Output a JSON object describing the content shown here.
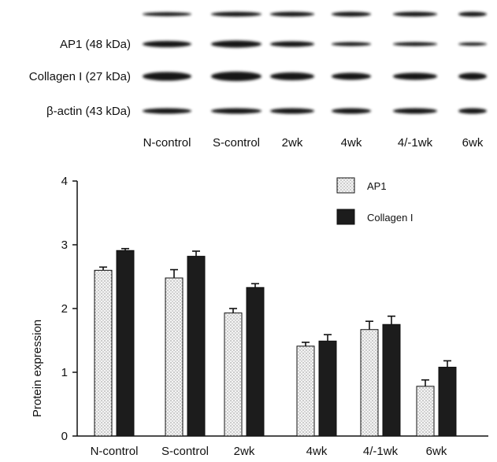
{
  "blot": {
    "rows": [
      {
        "label": ""
      },
      {
        "label": "AP1 (48 kDa)"
      },
      {
        "label": "Collagen I (27 kDa)"
      },
      {
        "label": "β-actin (43 kDa)"
      }
    ],
    "lanes": [
      "N-control",
      "S-control",
      "2wk",
      "4wk",
      "4/-1wk",
      "6wk"
    ]
  },
  "chart_data": {
    "type": "bar",
    "categories": [
      "N-control",
      "S-control",
      "2wk",
      "4wk",
      "4/-1wk",
      "6wk"
    ],
    "series": [
      {
        "name": "AP1",
        "values": [
          2.6,
          2.48,
          1.93,
          1.41,
          1.67,
          0.78
        ],
        "errors": [
          0.05,
          0.13,
          0.07,
          0.06,
          0.13,
          0.1
        ],
        "pattern": "dotted",
        "color": "#f2f2f2"
      },
      {
        "name": "Collagen I",
        "values": [
          2.91,
          2.82,
          2.33,
          1.49,
          1.75,
          1.08
        ],
        "errors": [
          0.03,
          0.08,
          0.06,
          0.1,
          0.13,
          0.1
        ],
        "pattern": "solid",
        "color": "#1c1c1c"
      }
    ],
    "title": "",
    "xlabel": "",
    "ylabel": "Protein expression",
    "ylim": [
      0,
      4
    ],
    "yticks": [
      "0",
      "1",
      "2",
      "3",
      "4"
    ],
    "legend": "top-right",
    "grid": false
  }
}
